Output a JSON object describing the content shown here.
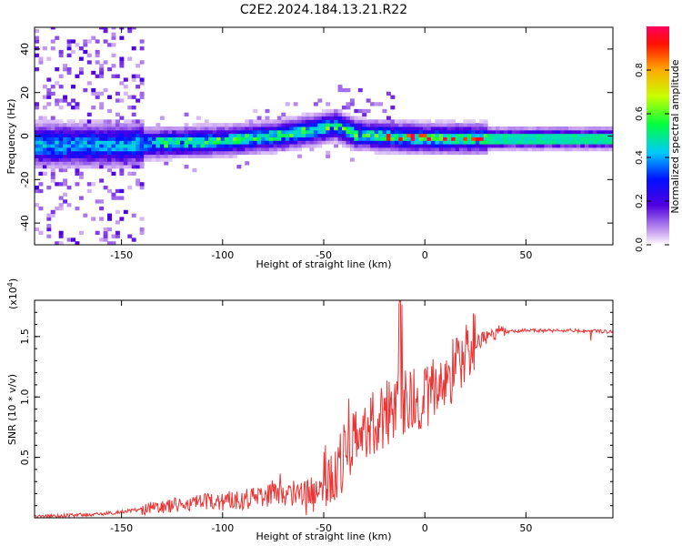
{
  "title": "C2E2.2024.184.13.21.R22",
  "chart_data": [
    {
      "type": "heatmap",
      "xlabel": "Height of straight line (km)",
      "ylabel": "Frequency (Hz)",
      "xlim": [
        -193,
        93
      ],
      "ylim": [
        -50,
        50
      ],
      "xticks": [
        -150,
        -100,
        -50,
        0,
        50
      ],
      "yticks": [
        -40,
        -20,
        0,
        20,
        40
      ],
      "colorbar": {
        "label": "Normalized spectral amplitude",
        "range": [
          0,
          1
        ],
        "ticks": [
          0.0,
          0.2,
          0.4,
          0.6,
          0.8
        ]
      },
      "ridge": [
        {
          "x": -190,
          "y": -4
        },
        {
          "x": -150,
          "y": -4
        },
        {
          "x": -130,
          "y": -3
        },
        {
          "x": -100,
          "y": -2
        },
        {
          "x": -75,
          "y": 0
        },
        {
          "x": -55,
          "y": 3
        },
        {
          "x": -45,
          "y": 5
        },
        {
          "x": -35,
          "y": 1
        },
        {
          "x": -20,
          "y": 0
        },
        {
          "x": 0,
          "y": -1
        },
        {
          "x": 30,
          "y": -1
        },
        {
          "x": 93,
          "y": -1
        }
      ]
    },
    {
      "type": "line",
      "xlabel": "Height of straight line (km)",
      "ylabel": "SNR (10 * v/v)",
      "scale_label": "(x10",
      "scale_exponent": "4",
      "scale_suffix": ")",
      "xlim": [
        -193,
        93
      ],
      "ylim": [
        0.0,
        1.8
      ],
      "xticks": [
        -150,
        -100,
        -50,
        0,
        50
      ],
      "yticks": [
        0.5,
        1.0,
        1.5
      ],
      "ytick_labels": [
        "0.5",
        "1.0",
        "1.5"
      ],
      "color": "#ee3333",
      "trend": [
        {
          "x": -193,
          "y": 0.01
        },
        {
          "x": -160,
          "y": 0.03
        },
        {
          "x": -140,
          "y": 0.07
        },
        {
          "x": -120,
          "y": 0.11
        },
        {
          "x": -100,
          "y": 0.14
        },
        {
          "x": -80,
          "y": 0.18
        },
        {
          "x": -70,
          "y": 0.19
        },
        {
          "x": -55,
          "y": 0.22
        },
        {
          "x": -45,
          "y": 0.4
        },
        {
          "x": -38,
          "y": 0.55
        },
        {
          "x": -30,
          "y": 0.7
        },
        {
          "x": -22,
          "y": 0.8
        },
        {
          "x": -15,
          "y": 0.95
        },
        {
          "x": -5,
          "y": 0.95
        },
        {
          "x": 5,
          "y": 1.05
        },
        {
          "x": 15,
          "y": 1.25
        },
        {
          "x": 25,
          "y": 1.45
        },
        {
          "x": 35,
          "y": 1.53
        },
        {
          "x": 50,
          "y": 1.55
        },
        {
          "x": 70,
          "y": 1.55
        },
        {
          "x": 93,
          "y": 1.54
        }
      ]
    }
  ]
}
